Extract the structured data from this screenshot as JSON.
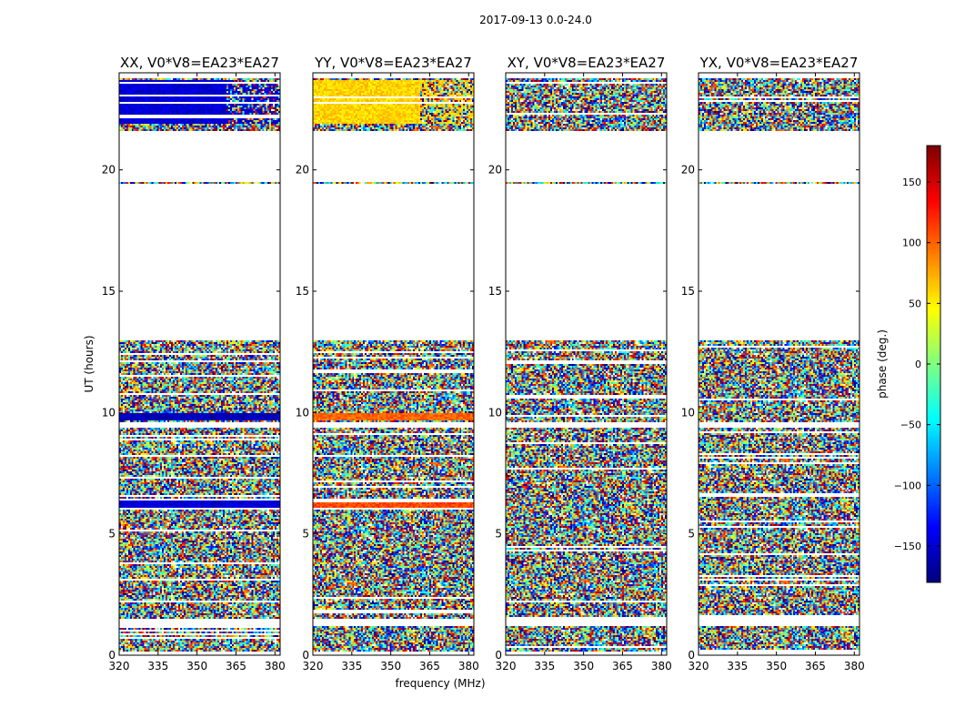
{
  "suptitle": "2017-09-13 0.0-24.0",
  "chart_data": {
    "type": "heatmap",
    "figure_title": "2017-09-13 0.0-24.0",
    "xlabel": "frequency (MHz)",
    "ylabel": "UT (hours)",
    "xlim": [
      320,
      382
    ],
    "ylim": [
      0,
      24
    ],
    "xticks": [
      320,
      335,
      350,
      365,
      380
    ],
    "yticks": [
      0,
      5,
      10,
      15,
      20
    ],
    "panels": [
      {
        "title": "XX, V0*V8=EA23*EA27",
        "pol": "XX"
      },
      {
        "title": "YY, V0*V8=EA23*EA27",
        "pol": "YY"
      },
      {
        "title": "XY, V0*V8=EA23*EA27",
        "pol": "XY"
      },
      {
        "title": "YX, V0*V8=EA23*EA27",
        "pol": "YX"
      }
    ],
    "colorbar": {
      "label": "phase (deg.)",
      "range": [
        -180,
        180
      ],
      "ticks": [
        -150,
        -100,
        -50,
        0,
        50,
        100,
        150
      ],
      "colormap": "jet"
    },
    "data_time_ranges_hours": [
      [
        0.15,
        1.2
      ],
      [
        1.5,
        9.4
      ],
      [
        9.6,
        13.0
      ],
      [
        19.4,
        19.5
      ],
      [
        21.6,
        23.8
      ]
    ],
    "coherent_bands": [
      {
        "pol": "XX",
        "t": [
          6.1,
          6.4
        ],
        "phase_deg": -150
      },
      {
        "pol": "XX",
        "t": [
          9.7,
          10.0
        ],
        "phase_deg": -160
      },
      {
        "pol": "XX",
        "t": [
          21.9,
          23.7
        ],
        "phase_deg": -150,
        "rfi_from_mhz": 361
      },
      {
        "pol": "YY",
        "t": [
          6.1,
          6.4
        ],
        "phase_deg": 110
      },
      {
        "pol": "YY",
        "t": [
          9.7,
          10.0
        ],
        "phase_deg": 100
      },
      {
        "pol": "YY",
        "t": [
          21.9,
          23.7
        ],
        "phase_deg": 60,
        "rfi_from_mhz": 361
      }
    ]
  }
}
